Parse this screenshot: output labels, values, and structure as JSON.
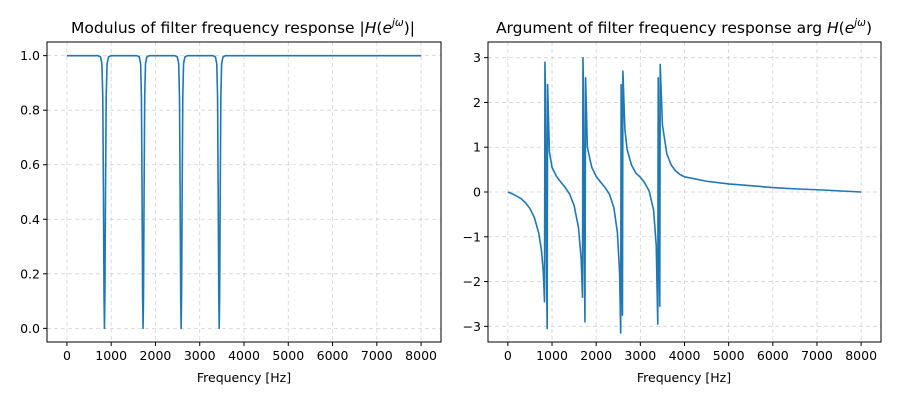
{
  "colors": {
    "series": "#1f77b4"
  },
  "chart_data": [
    {
      "type": "line",
      "title": "Modulus of filter frequency response |H(e^{jω})|",
      "title_parts": {
        "prefix": "Modulus of filter frequency response |",
        "H": "H",
        "open": "(",
        "e": "e",
        "sup": "jω",
        "close": ")|"
      },
      "xlabel": "Frequency [Hz]",
      "ylabel": "",
      "xlim": [
        -450,
        8450
      ],
      "ylim": [
        -0.05,
        1.05
      ],
      "xticks": [
        0,
        1000,
        2000,
        3000,
        4000,
        5000,
        6000,
        7000,
        8000
      ],
      "yticks": [
        0.0,
        0.2,
        0.4,
        0.6,
        0.8,
        1.0
      ],
      "ytick_labels": [
        "0.0",
        "0.2",
        "0.4",
        "0.6",
        "0.8",
        "1.0"
      ],
      "grid": true,
      "series": [
        {
          "points": [
            [
              0,
              1.0
            ],
            [
              700,
              1.0
            ],
            [
              760,
              0.995
            ],
            [
              790,
              0.97
            ],
            [
              810,
              0.85
            ],
            [
              825,
              0.5
            ],
            [
              838,
              0.12
            ],
            [
              848,
              0.0
            ],
            [
              858,
              0.12
            ],
            [
              872,
              0.5
            ],
            [
              887,
              0.85
            ],
            [
              907,
              0.97
            ],
            [
              940,
              0.995
            ],
            [
              1000,
              1.0
            ],
            [
              1580,
              1.0
            ],
            [
              1635,
              0.995
            ],
            [
              1665,
              0.97
            ],
            [
              1683,
              0.85
            ],
            [
              1697,
              0.5
            ],
            [
              1710,
              0.12
            ],
            [
              1720,
              0.0
            ],
            [
              1730,
              0.12
            ],
            [
              1743,
              0.5
            ],
            [
              1757,
              0.85
            ],
            [
              1775,
              0.97
            ],
            [
              1805,
              0.995
            ],
            [
              1860,
              1.0
            ],
            [
              2440,
              1.0
            ],
            [
              2495,
              0.995
            ],
            [
              2525,
              0.97
            ],
            [
              2543,
              0.85
            ],
            [
              2557,
              0.5
            ],
            [
              2570,
              0.12
            ],
            [
              2580,
              0.0
            ],
            [
              2590,
              0.12
            ],
            [
              2603,
              0.5
            ],
            [
              2617,
              0.85
            ],
            [
              2635,
              0.97
            ],
            [
              2665,
              0.995
            ],
            [
              2720,
              1.0
            ],
            [
              3300,
              1.0
            ],
            [
              3355,
              0.995
            ],
            [
              3385,
              0.97
            ],
            [
              3403,
              0.85
            ],
            [
              3417,
              0.5
            ],
            [
              3430,
              0.12
            ],
            [
              3440,
              0.0
            ],
            [
              3450,
              0.12
            ],
            [
              3463,
              0.5
            ],
            [
              3477,
              0.85
            ],
            [
              3495,
              0.97
            ],
            [
              3525,
              0.995
            ],
            [
              3580,
              1.0
            ],
            [
              8000,
              1.0
            ]
          ]
        }
      ]
    },
    {
      "type": "line",
      "title": "Argument of filter frequency response arg H(e^{jω})",
      "title_parts": {
        "prefix": "Argument of filter frequency response arg ",
        "H": "H",
        "open": "(",
        "e": "e",
        "sup": "jω",
        "close": ")"
      },
      "xlabel": "Frequency [Hz]",
      "ylabel": "",
      "xlim": [
        -450,
        8450
      ],
      "ylim": [
        -3.35,
        3.35
      ],
      "xticks": [
        0,
        1000,
        2000,
        3000,
        4000,
        5000,
        6000,
        7000,
        8000
      ],
      "yticks": [
        -3,
        -2,
        -1,
        0,
        1,
        2,
        3
      ],
      "ytick_labels": [
        "−3",
        "−2",
        "−1",
        "0",
        "1",
        "2",
        "3"
      ],
      "grid": true,
      "series": [
        {
          "points": [
            [
              0,
              0.0
            ],
            [
              100,
              -0.04
            ],
            [
              200,
              -0.09
            ],
            [
              300,
              -0.15
            ],
            [
              400,
              -0.24
            ],
            [
              500,
              -0.37
            ],
            [
              600,
              -0.57
            ],
            [
              700,
              -0.92
            ],
            [
              760,
              -1.3
            ],
            [
              800,
              -1.75
            ],
            [
              830,
              -2.45
            ],
            [
              840,
              2.9
            ],
            [
              850,
              2.4
            ],
            [
              860,
              1.2
            ],
            [
              870,
              -1.0
            ],
            [
              880,
              -2.2
            ],
            [
              890,
              -3.05
            ],
            [
              900,
              2.4
            ],
            [
              940,
              0.9
            ],
            [
              1000,
              0.55
            ],
            [
              1100,
              0.35
            ],
            [
              1200,
              0.22
            ],
            [
              1300,
              0.1
            ],
            [
              1400,
              -0.05
            ],
            [
              1500,
              -0.3
            ],
            [
              1600,
              -0.8
            ],
            [
              1660,
              -1.5
            ],
            [
              1690,
              -2.35
            ],
            [
              1700,
              3.0
            ],
            [
              1710,
              2.4
            ],
            [
              1720,
              0.9
            ],
            [
              1730,
              -1.2
            ],
            [
              1745,
              -2.9
            ],
            [
              1760,
              2.55
            ],
            [
              1800,
              1.0
            ],
            [
              1900,
              0.55
            ],
            [
              2000,
              0.35
            ],
            [
              2100,
              0.22
            ],
            [
              2200,
              0.1
            ],
            [
              2300,
              -0.05
            ],
            [
              2400,
              -0.35
            ],
            [
              2480,
              -0.9
            ],
            [
              2530,
              -1.8
            ],
            [
              2555,
              -3.15
            ],
            [
              2565,
              2.4
            ],
            [
              2575,
              0.8
            ],
            [
              2585,
              -1.5
            ],
            [
              2595,
              -2.75
            ],
            [
              2605,
              2.7
            ],
            [
              2650,
              1.4
            ],
            [
              2700,
              0.95
            ],
            [
              2800,
              0.6
            ],
            [
              2900,
              0.42
            ],
            [
              3000,
              0.33
            ],
            [
              3100,
              0.2
            ],
            [
              3200,
              0.02
            ],
            [
              3300,
              -0.4
            ],
            [
              3360,
              -1.2
            ],
            [
              3395,
              -2.95
            ],
            [
              3405,
              2.55
            ],
            [
              3415,
              1.0
            ],
            [
              3425,
              -1.3
            ],
            [
              3440,
              -2.55
            ],
            [
              3450,
              2.85
            ],
            [
              3500,
              1.5
            ],
            [
              3600,
              0.85
            ],
            [
              3700,
              0.6
            ],
            [
              3800,
              0.47
            ],
            [
              3900,
              0.39
            ],
            [
              4000,
              0.34
            ],
            [
              4500,
              0.24
            ],
            [
              5000,
              0.18
            ],
            [
              5500,
              0.14
            ],
            [
              6000,
              0.1
            ],
            [
              6500,
              0.07
            ],
            [
              7000,
              0.05
            ],
            [
              7500,
              0.025
            ],
            [
              8000,
              0.0
            ]
          ]
        }
      ]
    }
  ]
}
